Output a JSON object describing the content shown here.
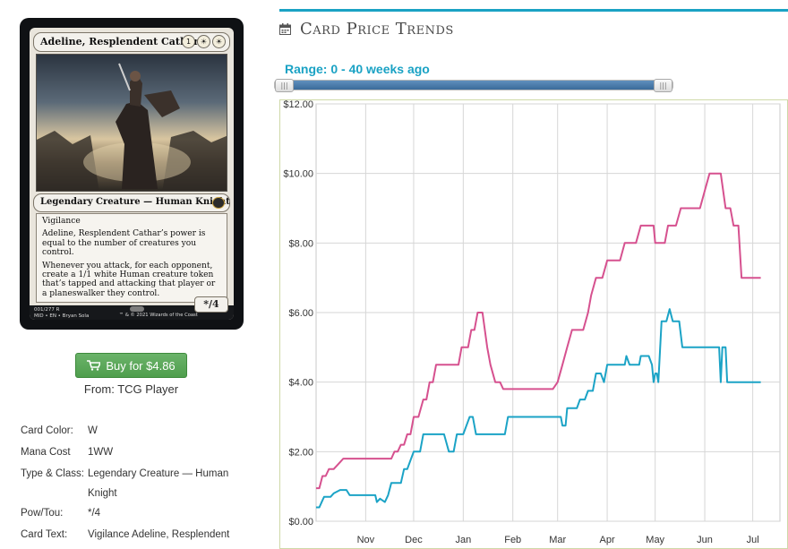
{
  "card": {
    "name": "Adeline, Resplendent Cathar",
    "mana_symbols": [
      "1",
      "☀",
      "☀"
    ],
    "type_line": "Legendary Creature — Human Knight",
    "rules_text": [
      "Vigilance",
      "Adeline, Resplendent Cathar’s power is equal to the number of creatures you control.",
      "Whenever you attack, for each opponent, create a 1/1 white Human creature token that’s tapped and attacking that player or a planeswalker they control."
    ],
    "power_toughness": "*/4",
    "footer_left": "001/277 R\nMID • EN • Bryan Sola",
    "footer_right": "™ & © 2021 Wizards of the Coast"
  },
  "purchase": {
    "button_label": "Buy for $4.86",
    "from_label": "From: TCG Player"
  },
  "details": [
    {
      "label": "Card Color:",
      "value": "W"
    },
    {
      "label": "Mana Cost",
      "value": "1WW"
    },
    {
      "label": "Type & Class:",
      "value": "Legendary Creature — Human Knight"
    },
    {
      "label": "Pow/Tou:",
      "value": "*/4"
    },
    {
      "label": "Card Text:",
      "value": "Vigilance Adeline, Resplendent"
    }
  ],
  "chart_panel": {
    "title": "Card Price Trends",
    "range_label": "Range: 0 - 40 weeks ago",
    "handle_glyph": "|||"
  },
  "colors": {
    "accent": "#1aa2c4",
    "series_pink": "#d6518f",
    "series_teal": "#1ba3c6",
    "buy_green": "#5aa858"
  },
  "chart_data": {
    "type": "line",
    "ylim": [
      0,
      12
    ],
    "y_ticks": [
      "$0.00",
      "$2.00",
      "$4.00",
      "$6.00",
      "$8.00",
      "$10.00",
      "$12.00"
    ],
    "y_tick_values": [
      0,
      2,
      4,
      6,
      8,
      10,
      12
    ],
    "x_range_days": [
      0,
      290
    ],
    "x_ticks": [
      {
        "label": "Nov",
        "day": 31
      },
      {
        "label": "Dec",
        "day": 61
      },
      {
        "label": "Jan",
        "day": 92
      },
      {
        "label": "Feb",
        "day": 123
      },
      {
        "label": "Mar",
        "day": 151
      },
      {
        "label": "Apr",
        "day": 182
      },
      {
        "label": "May",
        "day": 212
      },
      {
        "label": "Jun",
        "day": 243
      },
      {
        "label": "Jul",
        "day": 273
      }
    ],
    "grid": true,
    "series": [
      {
        "color": "#d6518f",
        "points": [
          [
            0,
            0.95
          ],
          [
            2,
            0.95
          ],
          [
            4,
            1.3
          ],
          [
            6,
            1.3
          ],
          [
            8,
            1.5
          ],
          [
            11,
            1.5
          ],
          [
            13,
            1.6
          ],
          [
            17,
            1.8
          ],
          [
            30,
            1.8
          ],
          [
            47,
            1.8
          ],
          [
            49,
            2.0
          ],
          [
            51,
            2.0
          ],
          [
            53,
            2.2
          ],
          [
            55,
            2.2
          ],
          [
            57,
            2.5
          ],
          [
            59,
            2.5
          ],
          [
            61,
            3.0
          ],
          [
            64,
            3.0
          ],
          [
            67,
            3.5
          ],
          [
            69,
            3.5
          ],
          [
            71,
            4.0
          ],
          [
            73,
            4.0
          ],
          [
            75,
            4.5
          ],
          [
            89,
            4.5
          ],
          [
            91,
            5.0
          ],
          [
            95,
            5.0
          ],
          [
            97,
            5.5
          ],
          [
            99,
            5.5
          ],
          [
            101,
            6.0
          ],
          [
            104,
            6.0
          ],
          [
            107,
            5.0
          ],
          [
            109,
            4.5
          ],
          [
            112,
            4.0
          ],
          [
            115,
            4.0
          ],
          [
            117,
            3.8
          ],
          [
            124,
            3.8
          ],
          [
            148,
            3.8
          ],
          [
            151,
            4.0
          ],
          [
            154,
            4.5
          ],
          [
            157,
            5.0
          ],
          [
            160,
            5.5
          ],
          [
            167,
            5.5
          ],
          [
            170,
            6.0
          ],
          [
            172,
            6.5
          ],
          [
            175,
            7.0
          ],
          [
            179,
            7.0
          ],
          [
            182,
            7.5
          ],
          [
            190,
            7.5
          ],
          [
            193,
            8.0
          ],
          [
            200,
            8.0
          ],
          [
            203,
            8.5
          ],
          [
            211,
            8.5
          ],
          [
            212,
            8.0
          ],
          [
            218,
            8.0
          ],
          [
            220,
            8.5
          ],
          [
            225,
            8.5
          ],
          [
            228,
            9.0
          ],
          [
            240,
            9.0
          ],
          [
            243,
            9.5
          ],
          [
            246,
            10.0
          ],
          [
            253,
            10.0
          ],
          [
            256,
            9.0
          ],
          [
            259,
            9.0
          ],
          [
            261,
            8.5
          ],
          [
            264,
            8.5
          ],
          [
            266,
            7.0
          ],
          [
            278,
            7.0
          ]
        ]
      },
      {
        "color": "#1ba3c6",
        "points": [
          [
            0,
            0.4
          ],
          [
            2,
            0.4
          ],
          [
            4,
            0.6
          ],
          [
            5,
            0.7
          ],
          [
            9,
            0.7
          ],
          [
            11,
            0.8
          ],
          [
            15,
            0.9
          ],
          [
            19,
            0.9
          ],
          [
            21,
            0.75
          ],
          [
            31,
            0.75
          ],
          [
            37,
            0.75
          ],
          [
            38,
            0.55
          ],
          [
            40,
            0.65
          ],
          [
            43,
            0.55
          ],
          [
            45,
            0.75
          ],
          [
            47,
            1.1
          ],
          [
            53,
            1.1
          ],
          [
            55,
            1.5
          ],
          [
            57,
            1.5
          ],
          [
            59,
            1.75
          ],
          [
            61,
            2.0
          ],
          [
            65,
            2.0
          ],
          [
            67,
            2.5
          ],
          [
            80,
            2.5
          ],
          [
            83,
            2.0
          ],
          [
            86,
            2.0
          ],
          [
            88,
            2.5
          ],
          [
            92,
            2.5
          ],
          [
            94,
            2.75
          ],
          [
            96,
            3.0
          ],
          [
            98,
            3.0
          ],
          [
            100,
            2.5
          ],
          [
            118,
            2.5
          ],
          [
            120,
            3.0
          ],
          [
            147,
            3.0
          ],
          [
            153,
            3.0
          ],
          [
            154,
            2.75
          ],
          [
            156,
            2.75
          ],
          [
            157,
            3.25
          ],
          [
            163,
            3.25
          ],
          [
            165,
            3.5
          ],
          [
            168,
            3.5
          ],
          [
            170,
            3.75
          ],
          [
            173,
            3.75
          ],
          [
            174,
            4.0
          ],
          [
            175,
            4.25
          ],
          [
            178,
            4.25
          ],
          [
            180,
            4.0
          ],
          [
            182,
            4.5
          ],
          [
            193,
            4.5
          ],
          [
            194,
            4.75
          ],
          [
            196,
            4.5
          ],
          [
            202,
            4.5
          ],
          [
            203,
            4.75
          ],
          [
            208,
            4.75
          ],
          [
            210,
            4.5
          ],
          [
            211,
            4.0
          ],
          [
            212,
            4.25
          ],
          [
            213,
            4.25
          ],
          [
            214,
            4.0
          ],
          [
            216,
            5.75
          ],
          [
            219,
            5.75
          ],
          [
            221,
            6.1
          ],
          [
            223,
            5.75
          ],
          [
            225,
            5.75
          ],
          [
            227,
            5.75
          ],
          [
            229,
            5.0
          ],
          [
            243,
            5.0
          ],
          [
            245,
            5.0
          ],
          [
            250,
            5.0
          ],
          [
            252,
            5.0
          ],
          [
            253,
            4.0
          ],
          [
            254,
            5.0
          ],
          [
            256,
            5.0
          ],
          [
            257,
            4.0
          ],
          [
            278,
            4.0
          ]
        ]
      }
    ]
  }
}
